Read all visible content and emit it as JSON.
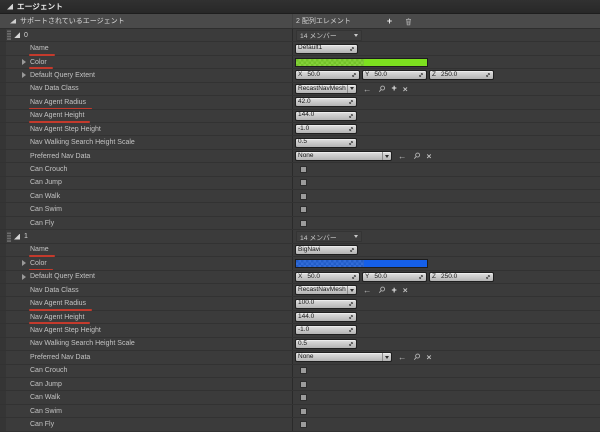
{
  "panel": {
    "category_header": "エージェント",
    "array_header": {
      "label": "サポートされているエージェント",
      "count": "2 配列エレメント"
    }
  },
  "property_labels": {
    "name": "Name",
    "color": "Color",
    "default_query_extent": "Default Query Extent",
    "nav_data_class": "Nav Data Class",
    "nav_agent_radius": "Nav Agent Radius",
    "nav_agent_height": "Nav Agent Height",
    "nav_agent_step_height": "Nav Agent Step Height",
    "nav_walking_search_height_scale": "Nav Walking Search Height Scale",
    "preferred_nav_data": "Preferred Nav Data",
    "can_crouch": "Can Crouch",
    "can_jump": "Can Jump",
    "can_walk": "Can Walk",
    "can_swim": "Can Swim",
    "can_fly": "Can Fly"
  },
  "axis_labels": [
    "X",
    "Y",
    "Z"
  ],
  "flag_keys": [
    "can_crouch",
    "can_jump",
    "can_walk",
    "can_swim",
    "can_fly"
  ],
  "modified_properties": [
    "name",
    "color",
    "nav_agent_radius",
    "nav_agent_height"
  ],
  "icons": {
    "add": "+",
    "back_arrow": "←",
    "clear": "×",
    "browse": "magnifier",
    "delete": "trash",
    "value_spinner": "diagonal-arrows",
    "dropdown_caret": "caret-down"
  },
  "colors": {
    "agent0_color": "#7de01f",
    "agent1_color": "#155fe8",
    "modified_underline": "#c43a2c"
  },
  "agents": [
    {
      "index": "0",
      "members": "14 メンバー",
      "name": "Default1",
      "color": "#7de01f",
      "default_query_extent": [
        "50.0",
        "50.0",
        "250.0"
      ],
      "nav_data_class": "RecastNavMesh",
      "nav_agent_radius": "42.0",
      "nav_agent_height": "144.0",
      "nav_agent_step_height": "-1.0",
      "nav_walking_search_height_scale": "0.5",
      "preferred_nav_data": "None",
      "flags": {
        "can_crouch": false,
        "can_jump": false,
        "can_walk": false,
        "can_swim": false,
        "can_fly": false
      }
    },
    {
      "index": "1",
      "members": "14 メンバー",
      "name": "BigNavi",
      "color": "#155fe8",
      "default_query_extent": [
        "50.0",
        "50.0",
        "250.0"
      ],
      "nav_data_class": "RecastNavMesh",
      "nav_agent_radius": "100.0",
      "nav_agent_height": "144.0",
      "nav_agent_step_height": "-1.0",
      "nav_walking_search_height_scale": "0.5",
      "preferred_nav_data": "None",
      "flags": {
        "can_crouch": false,
        "can_jump": false,
        "can_walk": false,
        "can_swim": false,
        "can_fly": false
      }
    }
  ]
}
